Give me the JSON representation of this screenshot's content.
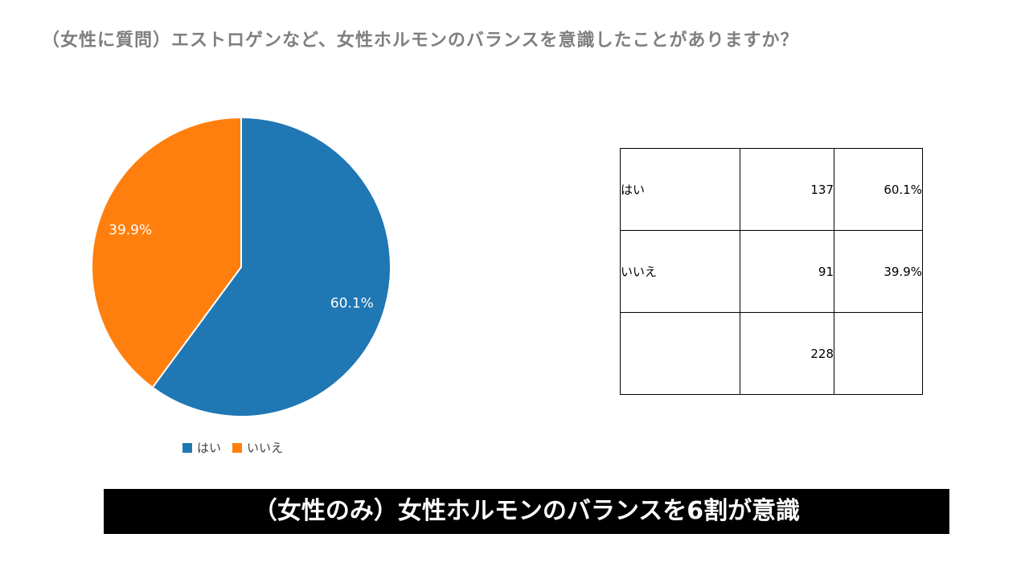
{
  "question": "（女性に質問）エストロゲンなど、女性ホルモンのバランスを意識したことがありますか？",
  "chart_data": {
    "type": "pie",
    "categories": [
      "はい",
      "いいえ"
    ],
    "values": [
      60.1,
      39.9
    ],
    "labels": [
      "60.1%",
      "39.9%"
    ],
    "colors": [
      "#1f77b4",
      "#ff7f0e"
    ],
    "legend_position": "bottom"
  },
  "table": {
    "rows": [
      {
        "label": "はい",
        "count": "137",
        "percent": "60.1%"
      },
      {
        "label": "いいえ",
        "count": "91",
        "percent": "39.9%"
      },
      {
        "label": "",
        "count": "228",
        "percent": ""
      }
    ]
  },
  "banner": "（女性のみ）女性ホルモンのバランスを6割が意識"
}
